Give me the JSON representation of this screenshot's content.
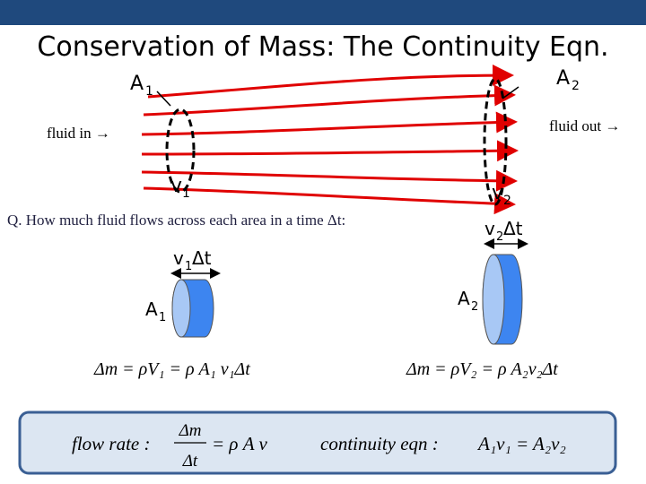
{
  "title": "Conservation of Mass: The Continuity Eqn.",
  "flow_diagram": {
    "area_left": {
      "symbol": "A",
      "sub": "1"
    },
    "area_right": {
      "symbol": "A",
      "sub": "2"
    },
    "fluid_in": "fluid in →",
    "fluid_out": "fluid out →",
    "velocity_left": {
      "symbol": "v",
      "sub": "1"
    },
    "velocity_right": {
      "symbol": "v",
      "sub": "2"
    }
  },
  "question": "Q. How much fluid flows across each area in a time Δt:",
  "left_slab": {
    "width_label": {
      "symbol": "v",
      "sub": "1",
      "suffix": "Δt"
    },
    "area_label": {
      "symbol": "A",
      "sub": "1"
    }
  },
  "right_slab": {
    "width_label": {
      "symbol": "v",
      "sub": "2",
      "suffix": "Δt"
    },
    "area_label": {
      "symbol": "A",
      "sub": "2"
    }
  },
  "equations": {
    "left": "Δm = ρV₁ = ρ A₁ v₁Δt",
    "right": "Δm = ρV₂ = ρ A₂v₂Δt"
  },
  "summary": {
    "flow_rate": {
      "label": "flow rate :",
      "numerator": "Δm",
      "denominator": "Δt",
      "rhs": "= ρ A v"
    },
    "continuity": {
      "label": "continuity eqn :",
      "equation": "A₁v₁ = A₂v₂"
    }
  }
}
